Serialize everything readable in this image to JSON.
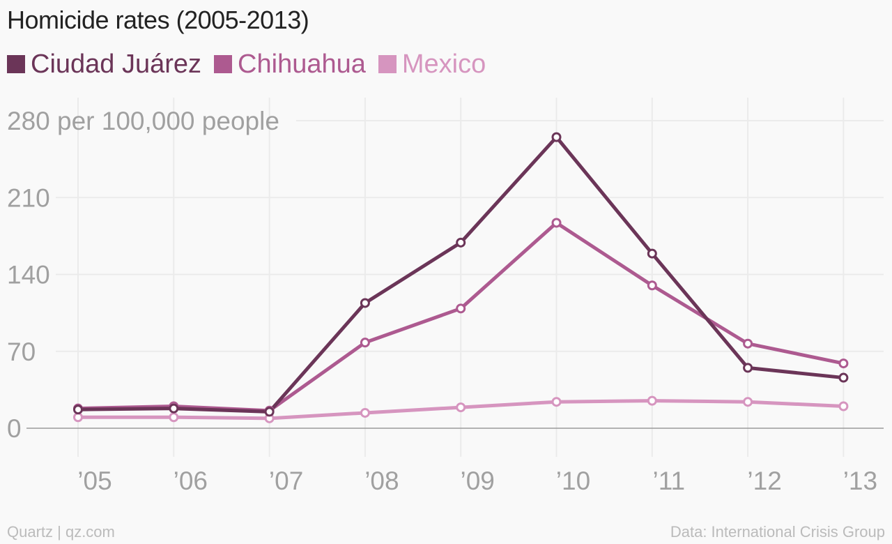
{
  "header": {
    "title": "Homicide rates (2005-2013)"
  },
  "footer": {
    "source": "Quartz | qz.com",
    "credit": "Data: International Crisis Group"
  },
  "chart_data": {
    "type": "line",
    "title": "Homicide rates (2005-2013)",
    "ylabel": "280 per 100,000 people",
    "categories": [
      "’05",
      "’06",
      "’07",
      "’08",
      "’09",
      "’10",
      "’11",
      "’12",
      "’13"
    ],
    "ylim": [
      0,
      280
    ],
    "yticks": [
      {
        "value": 0,
        "label": "0"
      },
      {
        "value": 70,
        "label": "70"
      },
      {
        "value": 140,
        "label": "140"
      },
      {
        "value": 210,
        "label": "210"
      },
      {
        "value": 280,
        "label": "280 per 100,000 people"
      }
    ],
    "grid": true,
    "legend_position": "top-left",
    "series": [
      {
        "name": "Ciudad Juárez",
        "color": "#6b3558",
        "values": [
          17,
          18,
          15,
          114,
          169,
          265,
          159,
          55,
          46
        ]
      },
      {
        "name": "Chihuahua",
        "color": "#ad5a90",
        "values": [
          18,
          20,
          16,
          78,
          109,
          187,
          130,
          77,
          59
        ]
      },
      {
        "name": "Mexico",
        "color": "#d695bf",
        "values": [
          10,
          10,
          9,
          14,
          19,
          24,
          25,
          24,
          20
        ]
      }
    ]
  }
}
